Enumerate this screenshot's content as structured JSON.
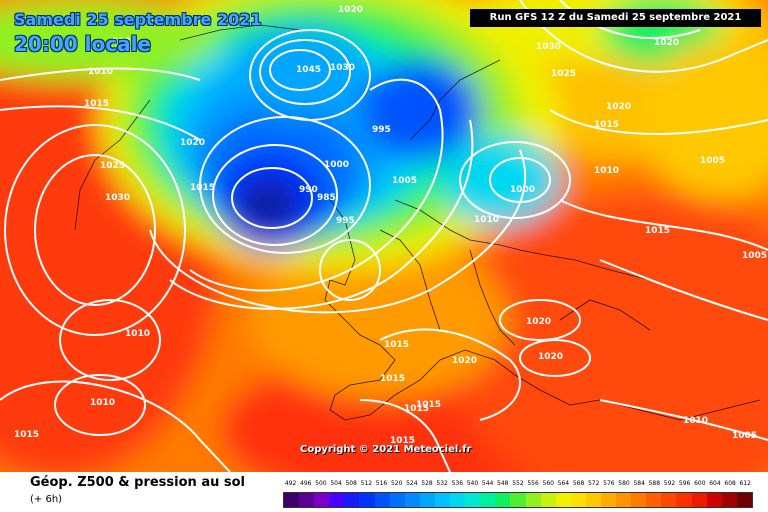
{
  "header": {
    "date_line": "Samedi 25 septembre 2021",
    "time_line": "20:00 locale",
    "run_info": "Run GFS 12 Z du Samedi 25 septembre 2021"
  },
  "copyright": "Copyright © 2021 Meteociel.fr",
  "legend": {
    "title": "Géop. Z500 & pression au sol",
    "subtitle": "(+ 6h)",
    "values": [
      "492",
      "496",
      "500",
      "504",
      "508",
      "512",
      "516",
      "520",
      "524",
      "528",
      "532",
      "536",
      "540",
      "544",
      "548",
      "552",
      "556",
      "560",
      "564",
      "568",
      "572",
      "576",
      "580",
      "584",
      "588",
      "592",
      "596",
      "600",
      "604",
      "608",
      "612"
    ],
    "colors": [
      "#3d0066",
      "#5a0094",
      "#7a00c8",
      "#4b00ff",
      "#1a1aff",
      "#0033ff",
      "#0052ff",
      "#0070ff",
      "#008cff",
      "#00a6ff",
      "#00c0ff",
      "#00d8f0",
      "#00e8d0",
      "#00f0a0",
      "#10f060",
      "#50f030",
      "#90f020",
      "#c8f010",
      "#f0f000",
      "#ffe000",
      "#ffc800",
      "#ffae00",
      "#ff9400",
      "#ff7a00",
      "#ff6000",
      "#ff4800",
      "#ff3000",
      "#f01800",
      "#d00000",
      "#a00000",
      "#700000"
    ]
  },
  "isobars": [
    {
      "label": "1020",
      "pos": "top"
    },
    {
      "label": "1010",
      "pos": "top-left"
    },
    {
      "label": "1030",
      "pos": "top-left"
    },
    {
      "label": "1015",
      "pos": "left"
    },
    {
      "label": "1045",
      "pos": "north"
    },
    {
      "label": "1030",
      "pos": "north"
    },
    {
      "label": "1020",
      "pos": "atlantic"
    },
    {
      "label": "1025",
      "pos": "canada"
    },
    {
      "label": "1030",
      "pos": "canada"
    },
    {
      "label": "1015",
      "pos": "atlantic"
    },
    {
      "label": "995",
      "pos": "norway"
    },
    {
      "label": "1000",
      "pos": "north-sea"
    },
    {
      "label": "990",
      "pos": "low"
    },
    {
      "label": "985",
      "pos": "low"
    },
    {
      "label": "995",
      "pos": "low"
    },
    {
      "label": "1005",
      "pos": "baltic"
    },
    {
      "label": "1000",
      "pos": "russia"
    },
    {
      "label": "1010",
      "pos": "poland"
    },
    {
      "label": "1030",
      "pos": "arctic"
    },
    {
      "label": "1025",
      "pos": "arctic"
    },
    {
      "label": "1020",
      "pos": "top-right"
    },
    {
      "label": "1020",
      "pos": "siberia"
    },
    {
      "label": "1015",
      "pos": "siberia"
    },
    {
      "label": "1010",
      "pos": "east"
    },
    {
      "label": "1005",
      "pos": "east"
    },
    {
      "label": "1015",
      "pos": "east"
    },
    {
      "label": "1005",
      "pos": "far-east"
    },
    {
      "label": "1010",
      "pos": "atlantic-sw"
    },
    {
      "label": "1010",
      "pos": "atlantic-s"
    },
    {
      "label": "1015",
      "pos": "bottom-left"
    },
    {
      "label": "1015",
      "pos": "france"
    },
    {
      "label": "1015",
      "pos": "spain"
    },
    {
      "label": "1020",
      "pos": "balkans"
    },
    {
      "label": "1020",
      "pos": "italy"
    },
    {
      "label": "1020",
      "pos": "greece"
    },
    {
      "label": "1015",
      "pos": "africa"
    },
    {
      "label": "1015",
      "pos": "africa"
    },
    {
      "label": "1015",
      "pos": "africa-s"
    },
    {
      "label": "1010",
      "pos": "middle-east"
    },
    {
      "label": "1005",
      "pos": "far-se"
    }
  ]
}
